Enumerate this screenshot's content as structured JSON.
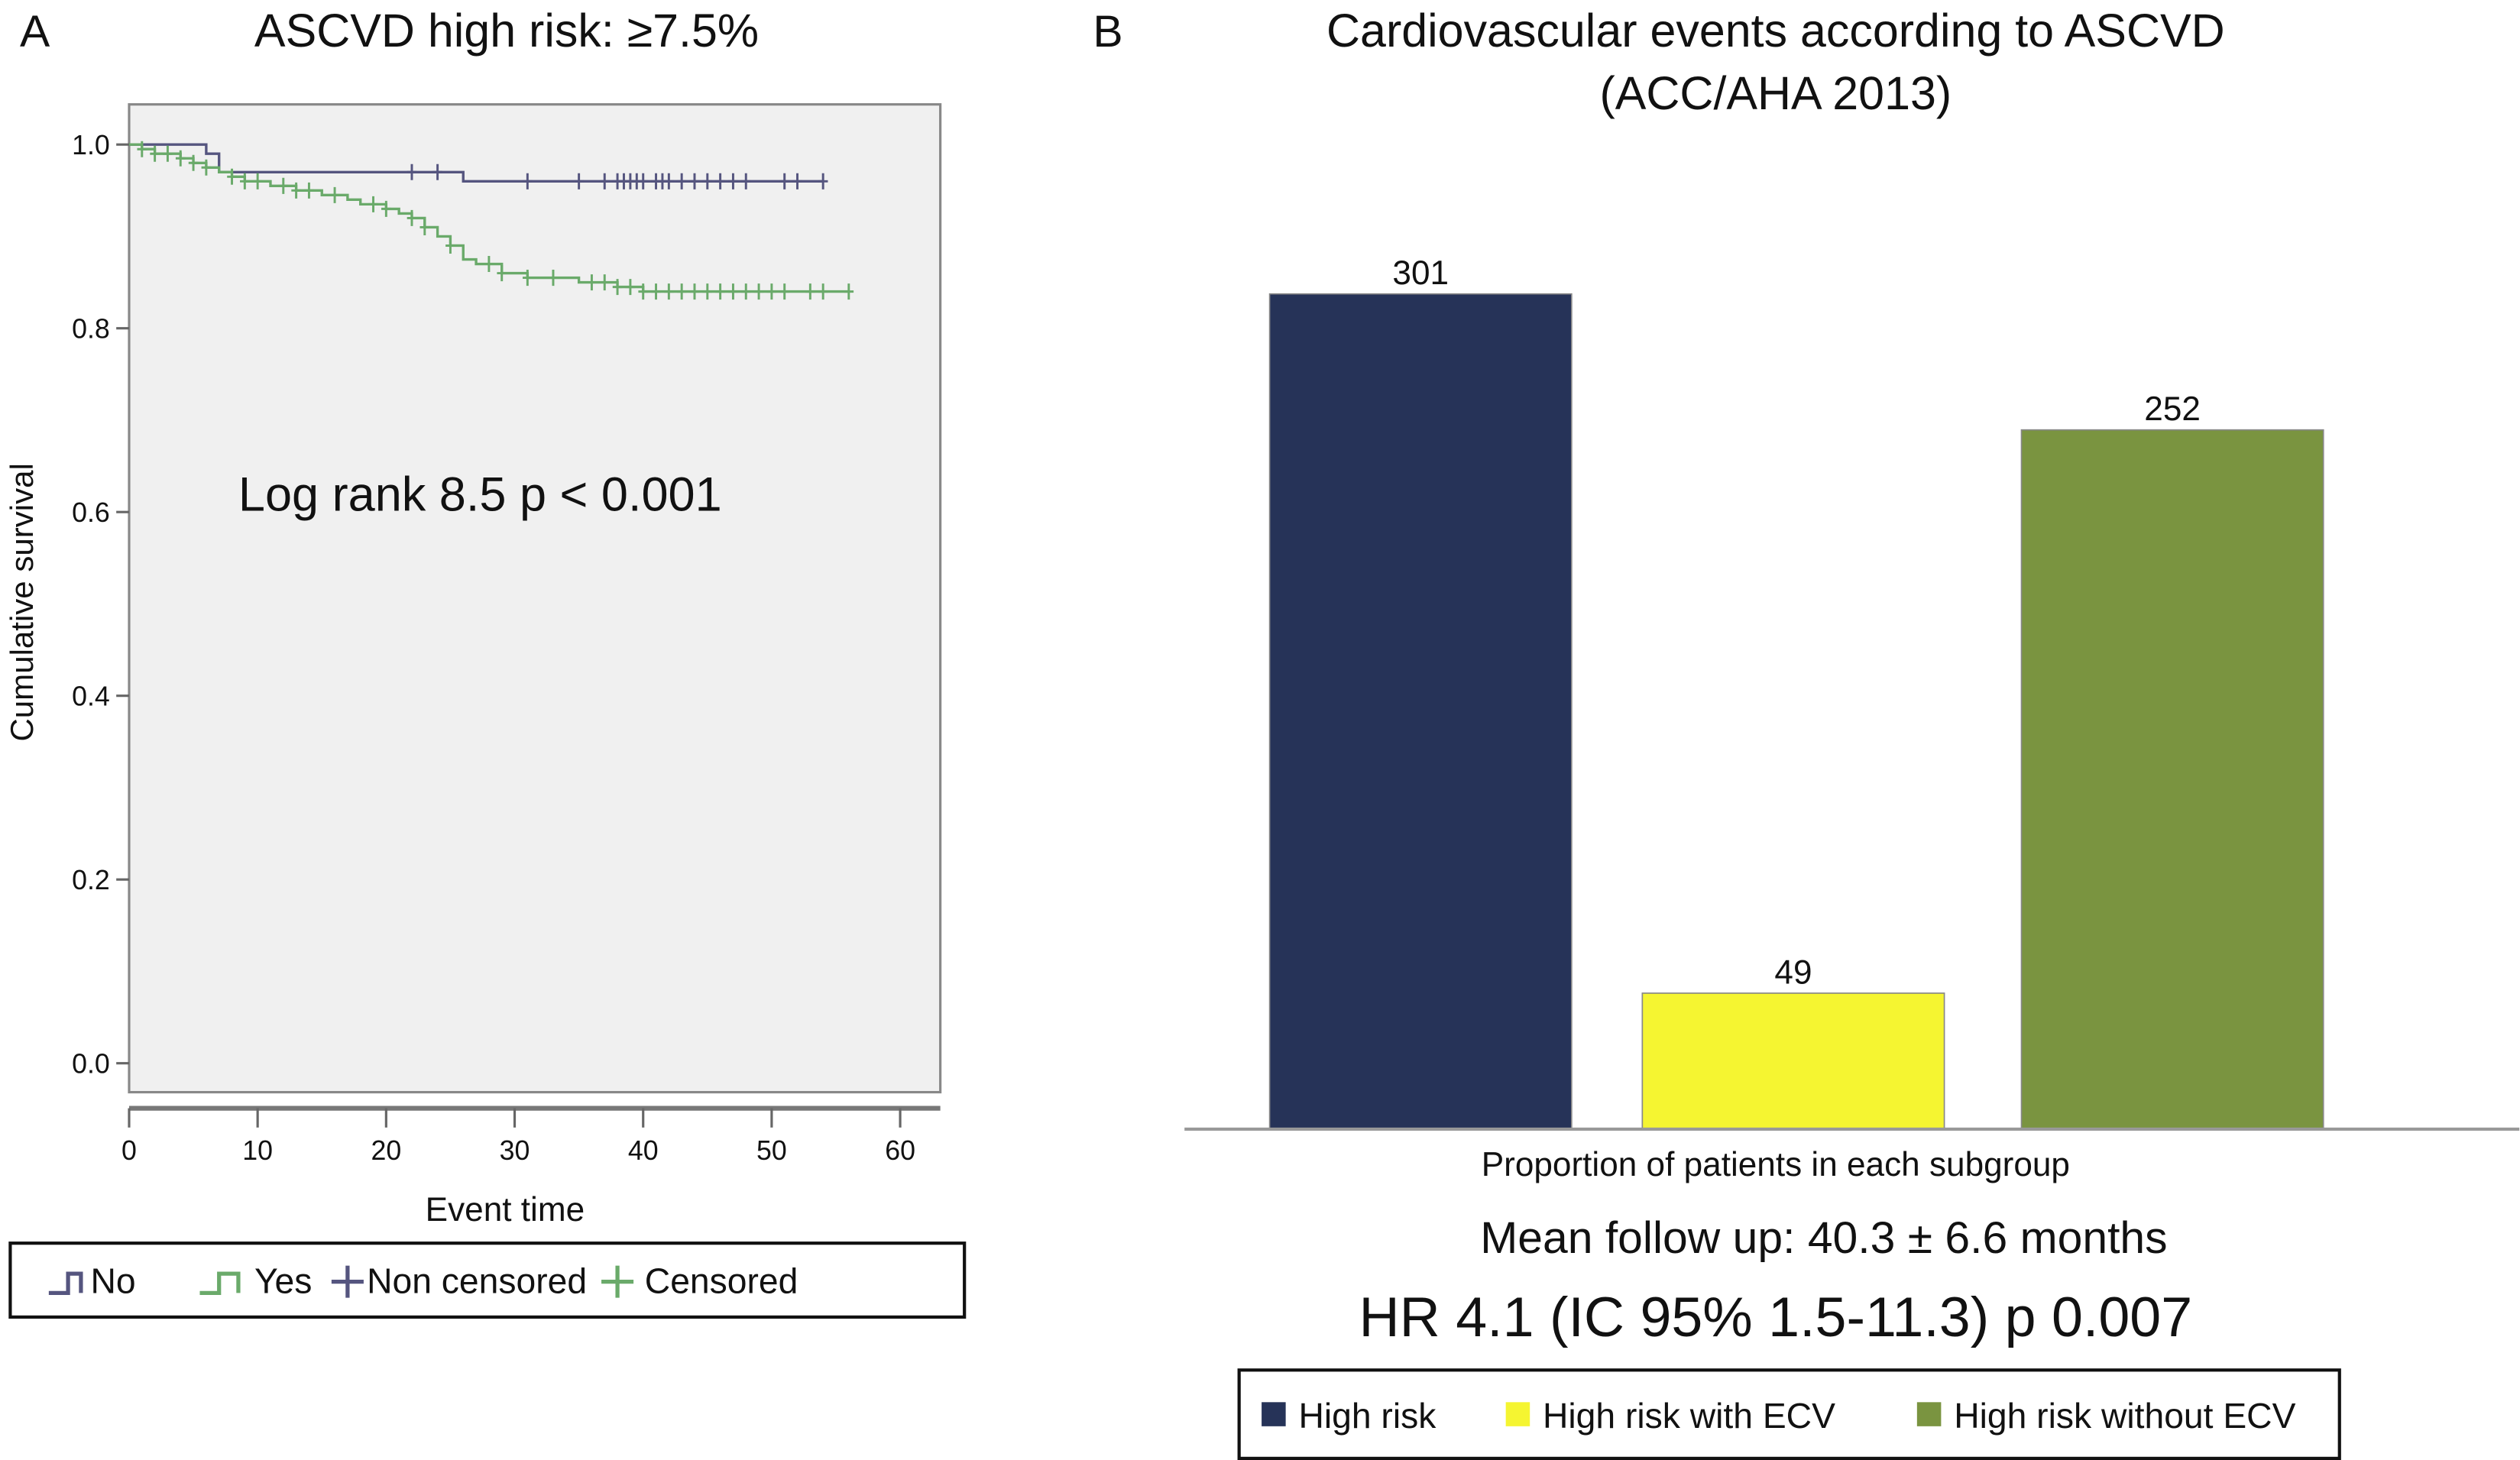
{
  "chart_data": [
    {
      "type": "line",
      "panel_label": "A",
      "title": "ASCVD high risk: ≥7.5%",
      "xlabel": "Event time",
      "ylabel": "Cumulative survival",
      "xlim": [
        0,
        60
      ],
      "ylim": [
        0.0,
        1.0
      ],
      "xticks": [
        "0",
        "10",
        "20",
        "30",
        "40",
        "50",
        "60"
      ],
      "yticks": [
        "0.0",
        "0.2",
        "0.4",
        "0.6",
        "0.8",
        "1.0"
      ],
      "annotation": "Log rank 8.5 p < 0.001",
      "grid": false,
      "plot_background": "#f0f0f0",
      "legend_placement": "bottom",
      "legend": [
        "No",
        "Yes",
        "Non censored",
        "Censored"
      ],
      "series": [
        {
          "name": "No",
          "color": "#55557f",
          "steps": [
            [
              0,
              1.0
            ],
            [
              6,
              0.99
            ],
            [
              7,
              0.97
            ],
            [
              26,
              0.96
            ],
            [
              54,
              0.96
            ]
          ],
          "censor_times": [
            22,
            24,
            31,
            35,
            37,
            38,
            38.5,
            39,
            39.5,
            40,
            41,
            41.5,
            42,
            43,
            44,
            45,
            46,
            47,
            48,
            51,
            52,
            54
          ]
        },
        {
          "name": "Yes",
          "color": "#6aaa6a",
          "steps": [
            [
              0,
              1.0
            ],
            [
              1,
              0.995
            ],
            [
              2,
              0.99
            ],
            [
              4,
              0.985
            ],
            [
              5,
              0.98
            ],
            [
              6,
              0.975
            ],
            [
              7,
              0.97
            ],
            [
              8,
              0.965
            ],
            [
              9,
              0.96
            ],
            [
              11,
              0.955
            ],
            [
              13,
              0.95
            ],
            [
              15,
              0.945
            ],
            [
              17,
              0.94
            ],
            [
              18,
              0.935
            ],
            [
              20,
              0.93
            ],
            [
              21,
              0.925
            ],
            [
              22,
              0.92
            ],
            [
              23,
              0.91
            ],
            [
              24,
              0.9
            ],
            [
              25,
              0.89
            ],
            [
              26,
              0.875
            ],
            [
              27,
              0.87
            ],
            [
              29,
              0.86
            ],
            [
              31,
              0.855
            ],
            [
              35,
              0.85
            ],
            [
              38,
              0.845
            ],
            [
              40,
              0.84
            ],
            [
              56,
              0.84
            ]
          ],
          "censor_times": [
            1,
            2,
            3,
            4,
            5,
            6,
            8,
            9,
            10,
            12,
            13,
            14,
            16,
            19,
            20,
            22,
            23,
            25,
            28,
            29,
            31,
            33,
            36,
            37,
            38,
            39,
            40,
            41,
            42,
            43,
            44,
            45,
            46,
            47,
            48,
            49,
            50,
            51,
            53,
            54,
            56
          ]
        }
      ]
    },
    {
      "type": "bar",
      "panel_label": "B",
      "title": [
        "Cardiovascular events according to ASCVD",
        "(ACC/AHA 2013)"
      ],
      "xlabel": "Proportion of patients in each subgroup",
      "categories": [
        "High risk",
        "High risk with ECV",
        "High risk without ECV"
      ],
      "values": [
        301,
        49,
        252
      ],
      "data_labels": [
        "301",
        "49",
        "252"
      ],
      "colors": [
        "#263358",
        "#f5f531",
        "#7a9440"
      ],
      "ylim": [
        0,
        301
      ],
      "legend_placement": "bottom",
      "notes": [
        "Mean follow up: 40.3 ± 6.6 months",
        "HR 4.1 (IC 95% 1.5-11.3) p 0.007"
      ]
    }
  ]
}
